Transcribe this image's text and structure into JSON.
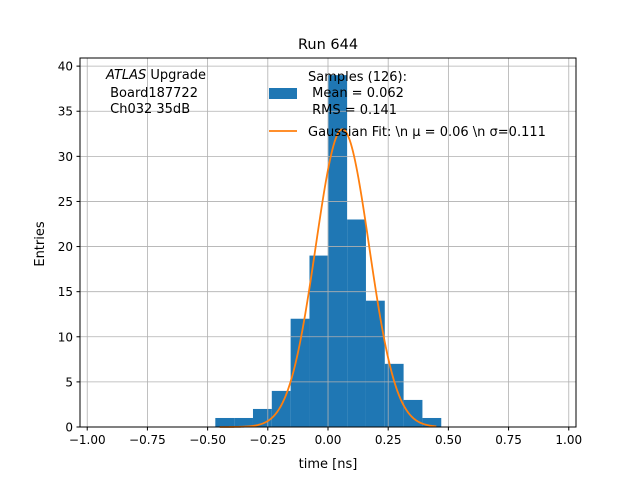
{
  "chart_data": {
    "type": "bar",
    "title": "Run 644",
    "xlabel": "time [ns]",
    "ylabel": "Entries",
    "xlim": [
      -1.03,
      1.03
    ],
    "ylim": [
      0,
      40.9
    ],
    "grid": true,
    "xticks": [
      -1.0,
      -0.75,
      -0.5,
      -0.25,
      0.0,
      0.25,
      0.5,
      0.75,
      1.0
    ],
    "xtick_labels": [
      "−1.00",
      "−0.75",
      "−0.50",
      "−0.25",
      "0.00",
      "0.25",
      "0.50",
      "0.75",
      "1.00"
    ],
    "yticks": [
      0,
      5,
      10,
      15,
      20,
      25,
      30,
      35,
      40
    ],
    "ytick_labels": [
      "0",
      "5",
      "10",
      "15",
      "20",
      "25",
      "30",
      "35",
      "40"
    ],
    "histogram": {
      "name": "Samples",
      "bin_start": -0.468,
      "bin_width": 0.0782,
      "counts": [
        1,
        1,
        2,
        4,
        12,
        19,
        39,
        23,
        14,
        7,
        3,
        1
      ],
      "color": "#1f77b4"
    },
    "fit": {
      "name": "Gaussian Fit",
      "mu": 0.06,
      "sigma": 0.111,
      "amplitude": 33,
      "x_range": [
        -0.45,
        0.45
      ],
      "color": "#ff7f0e"
    },
    "legend": {
      "placement": "top-center",
      "entries": [
        {
          "lines": [
            "Samples (126):",
            " Mean = 0.062",
            " RMS = 0.141"
          ]
        },
        {
          "lines": [
            "Gaussian Fit: \\n μ = 0.06 \\n σ=0.111"
          ]
        }
      ]
    },
    "annotation": {
      "lines": [
        "ATLAS Upgrade",
        " Board187722",
        " Ch032 35dB"
      ],
      "italic_word": "ATLAS",
      "placement": "top-left"
    }
  }
}
